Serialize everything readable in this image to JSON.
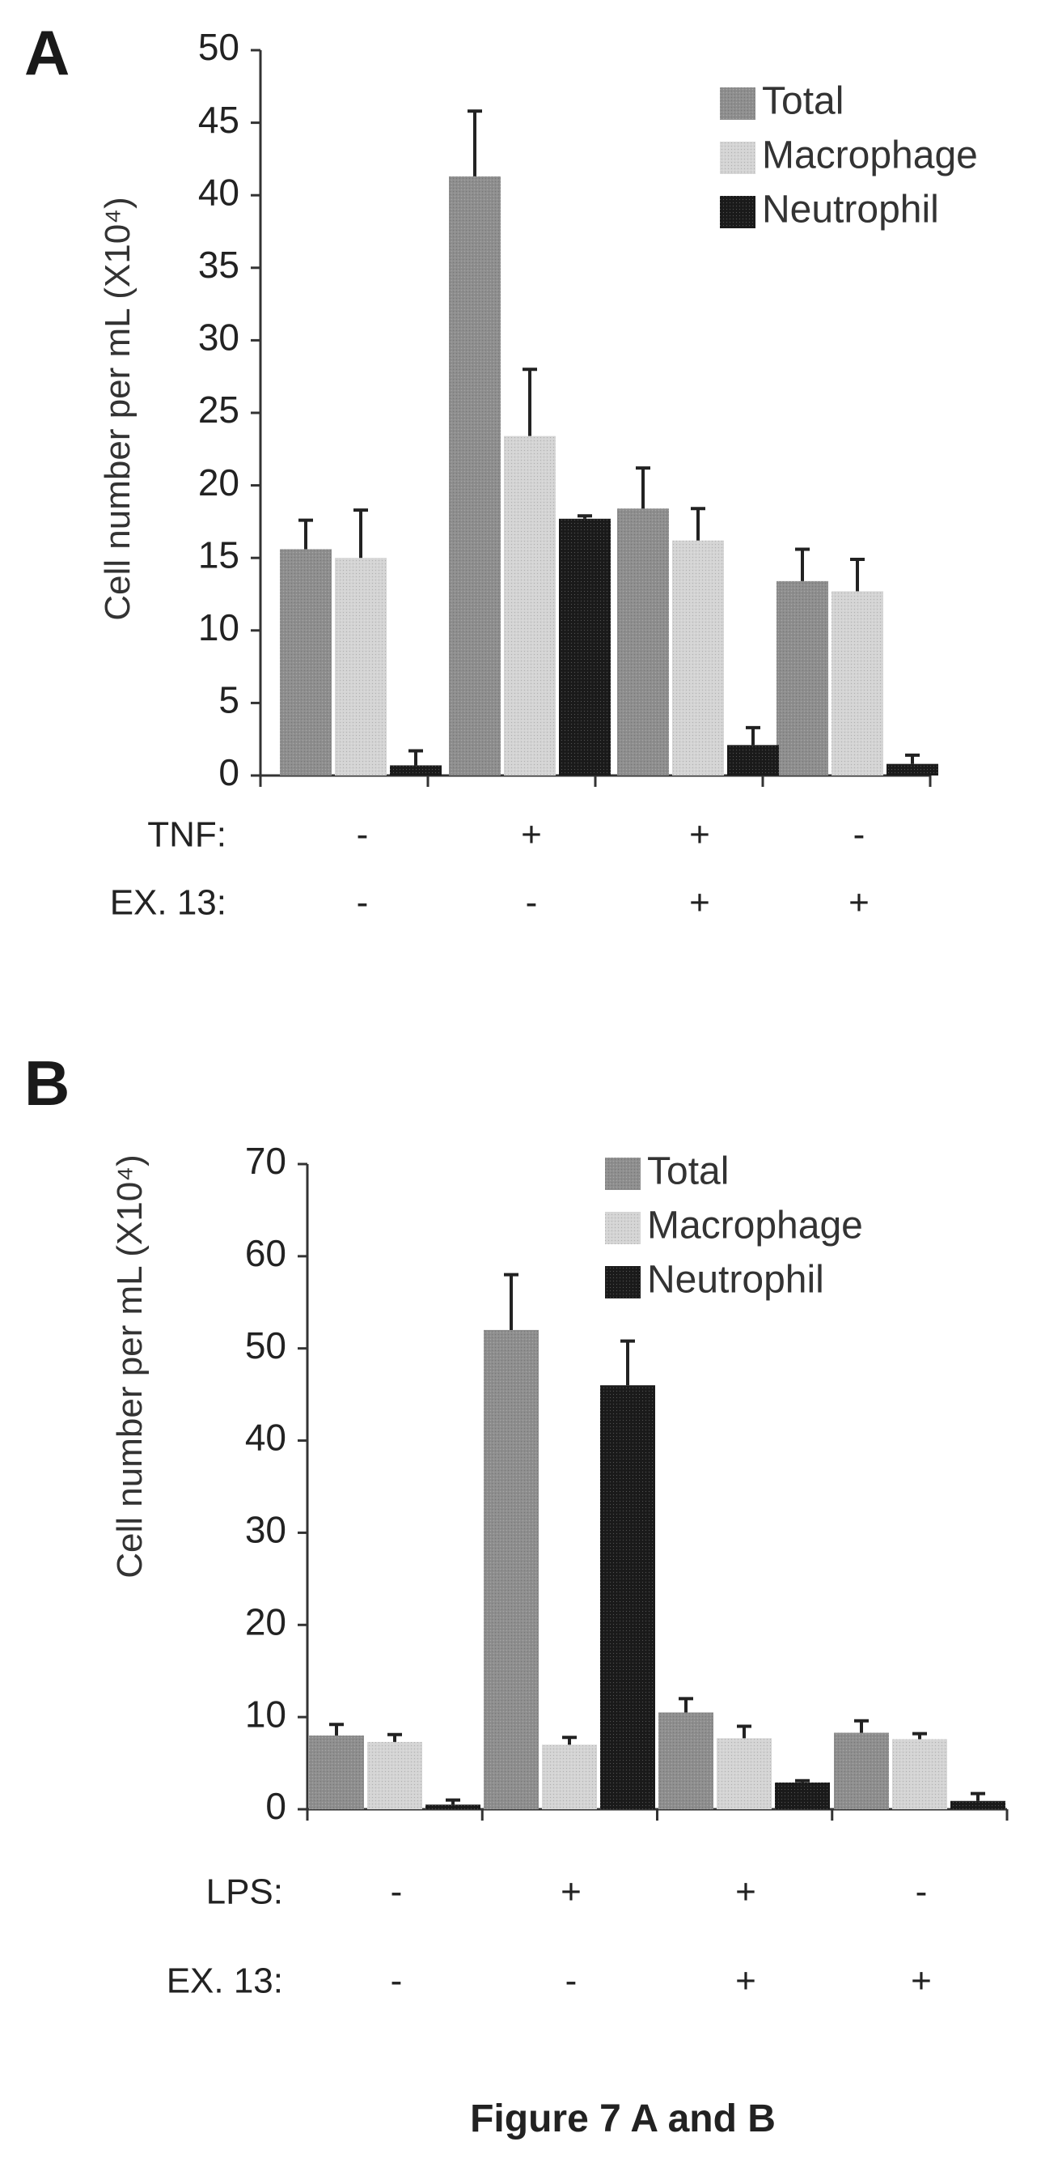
{
  "colors": {
    "total": "#8e8e8e",
    "macrophage": "#d4d4d4",
    "neutrophil": "#1b1b1b",
    "axis": "#333333"
  },
  "caption": "Figure 7 A and B",
  "chart_data": [
    {
      "type": "bar",
      "panel": "A",
      "ylabel": "Cell number per mL (X10⁴)",
      "ylim": [
        0,
        50
      ],
      "yticks": [
        0,
        5,
        10,
        15,
        20,
        25,
        30,
        35,
        40,
        45,
        50
      ],
      "legend_position": "top-right",
      "conditions": [
        {
          "label": "TNF:",
          "values": [
            "-",
            "+",
            "+",
            "-"
          ]
        },
        {
          "label": "EX. 13:",
          "values": [
            "-",
            "-",
            "+",
            "+"
          ]
        }
      ],
      "series": [
        {
          "name": "Total",
          "values": [
            15.6,
            41.3,
            18.4,
            13.4
          ],
          "errors": [
            2.0,
            4.5,
            2.8,
            2.2
          ]
        },
        {
          "name": "Macrophage",
          "values": [
            15.0,
            23.4,
            16.2,
            12.7
          ],
          "errors": [
            3.3,
            4.6,
            2.2,
            2.2
          ]
        },
        {
          "name": "Neutrophil",
          "values": [
            0.7,
            17.7,
            2.1,
            0.8
          ],
          "errors": [
            1.0,
            0.2,
            1.2,
            0.6
          ]
        }
      ]
    },
    {
      "type": "bar",
      "panel": "B",
      "ylabel": "Cell number per mL (X10⁴)",
      "ylim": [
        0,
        70
      ],
      "yticks": [
        0,
        10,
        20,
        30,
        40,
        50,
        60,
        70
      ],
      "legend_position": "top-right",
      "conditions": [
        {
          "label": "LPS:",
          "values": [
            "-",
            "+",
            "+",
            "-"
          ]
        },
        {
          "label": "EX. 13:",
          "values": [
            "-",
            "-",
            "+",
            "+"
          ]
        }
      ],
      "series": [
        {
          "name": "Total",
          "values": [
            8.0,
            52.0,
            10.5,
            8.3
          ],
          "errors": [
            1.2,
            6.0,
            1.5,
            1.3
          ]
        },
        {
          "name": "Macrophage",
          "values": [
            7.3,
            7.0,
            7.7,
            7.6
          ],
          "errors": [
            0.8,
            0.8,
            1.3,
            0.6
          ]
        },
        {
          "name": "Neutrophil",
          "values": [
            0.5,
            46.0,
            2.9,
            0.9
          ],
          "errors": [
            0.5,
            4.8,
            0.2,
            0.8
          ]
        }
      ]
    }
  ]
}
